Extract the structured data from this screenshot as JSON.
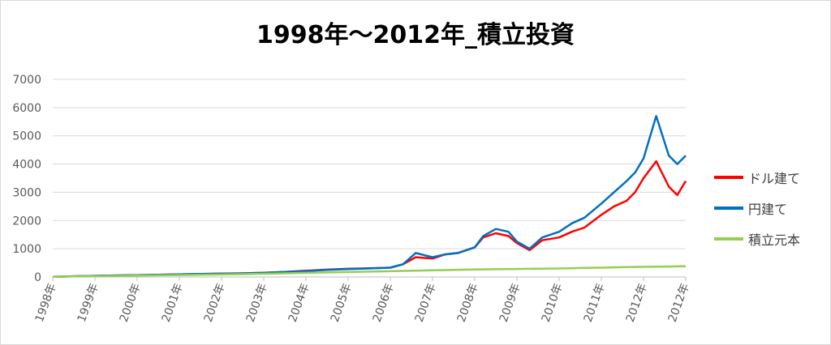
{
  "chart_data": {
    "type": "line",
    "title": "1998年〜2012年_積立投資",
    "xlabel": "",
    "ylabel": "",
    "ylim": [
      0,
      7000
    ],
    "yticks": [
      0,
      1000,
      2000,
      3000,
      4000,
      5000,
      6000,
      7000
    ],
    "x_ticks": [
      "1998年",
      "1999年",
      "2000年",
      "2001年",
      "2002年",
      "2003年",
      "2004年",
      "2005年",
      "2006年",
      "2007年",
      "2008年",
      "2009年",
      "2010年",
      "2011年",
      "2012年",
      "2012年"
    ],
    "x": [
      1998.0,
      1998.5,
      1999.0,
      1999.5,
      2000.0,
      2000.5,
      2001.0,
      2001.5,
      2002.0,
      2002.5,
      2003.0,
      2003.5,
      2004.0,
      2004.5,
      2005.0,
      2005.5,
      2006.0,
      2006.3,
      2006.6,
      2007.0,
      2007.3,
      2007.6,
      2008.0,
      2008.2,
      2008.5,
      2008.8,
      2009.0,
      2009.3,
      2009.6,
      2010.0,
      2010.3,
      2010.6,
      2011.0,
      2011.3,
      2011.6,
      2011.8,
      2012.0,
      2012.3,
      2012.6,
      2012.8,
      2013.0
    ],
    "series": [
      {
        "name": "ドル建て",
        "color": "#ff0000",
        "values": [
          10,
          25,
          40,
          55,
          65,
          80,
          95,
          105,
          120,
          130,
          150,
          180,
          220,
          260,
          290,
          310,
          330,
          450,
          700,
          650,
          800,
          850,
          1050,
          1400,
          1550,
          1450,
          1200,
          950,
          1300,
          1400,
          1600,
          1750,
          2200,
          2500,
          2700,
          3000,
          3500,
          4100,
          3200,
          2900,
          3400
        ]
      },
      {
        "name": "円建て",
        "color": "#0070c0",
        "values": [
          10,
          25,
          40,
          55,
          65,
          80,
          95,
          105,
          115,
          125,
          145,
          175,
          210,
          250,
          280,
          300,
          330,
          450,
          850,
          700,
          800,
          850,
          1050,
          1450,
          1700,
          1600,
          1250,
          1000,
          1400,
          1600,
          1900,
          2100,
          2600,
          3000,
          3400,
          3700,
          4200,
          5700,
          4300,
          4000,
          4300
        ]
      },
      {
        "name": "積立元本",
        "color": "#92d050",
        "values": [
          10,
          20,
          30,
          40,
          50,
          60,
          70,
          80,
          90,
          100,
          115,
          130,
          145,
          160,
          175,
          190,
          205,
          215,
          225,
          235,
          245,
          255,
          265,
          270,
          275,
          280,
          285,
          290,
          295,
          300,
          310,
          320,
          330,
          340,
          350,
          355,
          360,
          365,
          370,
          375,
          380
        ]
      }
    ],
    "legend_position": "right",
    "grid": true
  }
}
